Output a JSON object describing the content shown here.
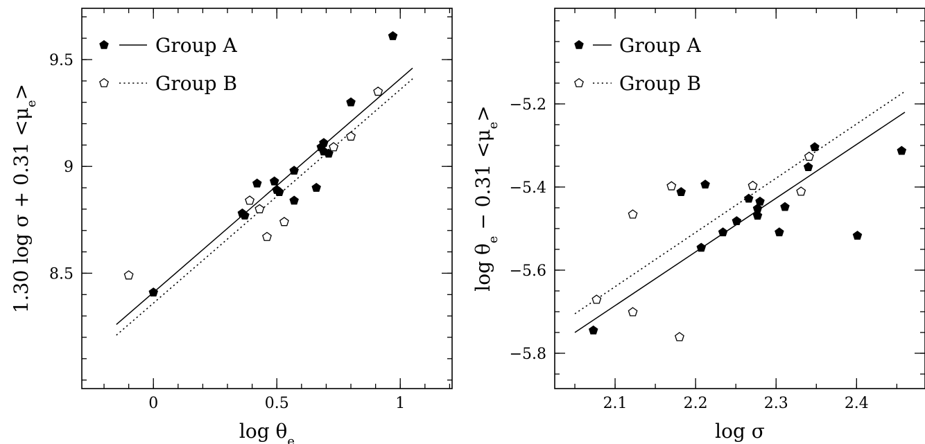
{
  "chart_data": [
    {
      "type": "scatter",
      "xlabel": "log θe",
      "ylabel": "1.30 log σ + 0.31 <μe>",
      "xlim": [
        -0.29,
        1.21
      ],
      "ylim": [
        7.96,
        9.74
      ],
      "xticks": [
        0,
        0.5,
        1
      ],
      "xtick_labels": [
        "0",
        "0.5",
        "1"
      ],
      "yticks": [
        8.5,
        9,
        9.5
      ],
      "ytick_labels": [
        "8.5",
        "9",
        "9.5"
      ],
      "x_minor": 0.1,
      "y_minor": 0.1,
      "legend_position": "top-left",
      "series": [
        {
          "name": "Group A",
          "marker": "filled-pentagon",
          "line": "solid",
          "points": [
            [
              0.0,
              8.41
            ],
            [
              0.36,
              8.78
            ],
            [
              0.37,
              8.77
            ],
            [
              0.42,
              8.92
            ],
            [
              0.49,
              8.93
            ],
            [
              0.5,
              8.89
            ],
            [
              0.51,
              8.88
            ],
            [
              0.57,
              8.98
            ],
            [
              0.57,
              8.84
            ],
            [
              0.66,
              8.9
            ],
            [
              0.68,
              9.09
            ],
            [
              0.69,
              9.11
            ],
            [
              0.69,
              9.07
            ],
            [
              0.71,
              9.06
            ],
            [
              0.8,
              9.3
            ],
            [
              0.97,
              9.61
            ]
          ],
          "fit": [
            [
              -0.15,
              8.26
            ],
            [
              1.05,
              9.46
            ]
          ]
        },
        {
          "name": "Group B",
          "marker": "open-pentagon",
          "line": "dotted",
          "points": [
            [
              -0.1,
              8.49
            ],
            [
              0.39,
              8.84
            ],
            [
              0.43,
              8.8
            ],
            [
              0.46,
              8.67
            ],
            [
              0.53,
              8.74
            ],
            [
              0.73,
              9.09
            ],
            [
              0.8,
              9.14
            ],
            [
              0.91,
              9.35
            ]
          ],
          "fit": [
            [
              -0.15,
              8.21
            ],
            [
              1.05,
              9.41
            ]
          ]
        }
      ]
    },
    {
      "type": "scatter",
      "xlabel": "log σ",
      "ylabel": "log θe − 0.31 <μe>",
      "xlim": [
        2.025,
        2.485
      ],
      "ylim": [
        -5.885,
        -4.97
      ],
      "xticks": [
        2.1,
        2.2,
        2.3,
        2.4
      ],
      "xtick_labels": [
        "2.1",
        "2.2",
        "2.3",
        "2.4"
      ],
      "yticks": [
        -5.8,
        -5.6,
        -5.4,
        -5.2
      ],
      "ytick_labels": [
        "−5.8",
        "−5.6",
        "−5.4",
        "−5.2"
      ],
      "x_minor": 0.05,
      "y_minor": 0.05,
      "legend_position": "top-left",
      "series": [
        {
          "name": "Group A",
          "marker": "filled-pentagon",
          "line": "solid",
          "points": [
            [
              2.073,
              -5.745
            ],
            [
              2.182,
              -5.412
            ],
            [
              2.207,
              -5.546
            ],
            [
              2.212,
              -5.394
            ],
            [
              2.234,
              -5.509
            ],
            [
              2.251,
              -5.482
            ],
            [
              2.266,
              -5.428
            ],
            [
              2.277,
              -5.469
            ],
            [
              2.277,
              -5.452
            ],
            [
              2.28,
              -5.435
            ],
            [
              2.304,
              -5.509
            ],
            [
              2.311,
              -5.448
            ],
            [
              2.34,
              -5.352
            ],
            [
              2.348,
              -5.304
            ],
            [
              2.401,
              -5.517
            ],
            [
              2.456,
              -5.313
            ]
          ],
          "fit": [
            [
              2.05,
              -5.75
            ],
            [
              2.46,
              -5.22
            ]
          ]
        },
        {
          "name": "Group B",
          "marker": "open-pentagon",
          "line": "dotted",
          "points": [
            [
              2.077,
              -5.671
            ],
            [
              2.122,
              -5.466
            ],
            [
              2.122,
              -5.701
            ],
            [
              2.17,
              -5.398
            ],
            [
              2.18,
              -5.761
            ],
            [
              2.271,
              -5.397
            ],
            [
              2.331,
              -5.411
            ],
            [
              2.341,
              -5.327
            ]
          ],
          "fit": [
            [
              2.05,
              -5.705
            ],
            [
              2.46,
              -5.17
            ]
          ]
        }
      ]
    }
  ]
}
